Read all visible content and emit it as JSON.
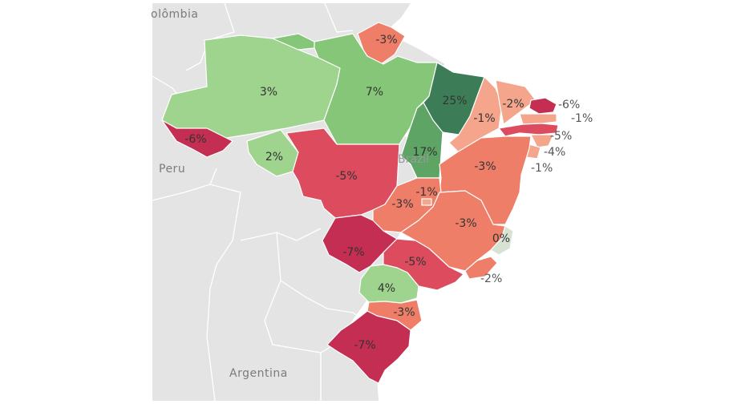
{
  "map": {
    "country_labels": {
      "colombia": "olômbia",
      "peru": "Peru",
      "argentina": "Argentina",
      "brazil_watermark": "Brazil"
    },
    "colors": {
      "land": "#e4e4e4",
      "ocean": "#ffffff",
      "strong_negative": "#c42e52",
      "negative": "#dc4c5e",
      "mild_negative": "#ef7e68",
      "slight_negative": "#f4a58c",
      "neutral": "#d6e2d2",
      "mild_positive": "#9ed48e",
      "positive": "#86c678",
      "strong_positive": "#5ea565",
      "max_positive": "#3c7d58"
    },
    "regions": [
      {
        "id": "amazonas",
        "value": "3%",
        "color_key": "mild_positive"
      },
      {
        "id": "para",
        "value": "7%",
        "color_key": "positive"
      },
      {
        "id": "amapa",
        "value": "-3%",
        "color_key": "mild_negative"
      },
      {
        "id": "roraima",
        "value": "",
        "color_key": "positive"
      },
      {
        "id": "acre",
        "value": "-6%",
        "color_key": "strong_negative"
      },
      {
        "id": "rondonia",
        "value": "2%",
        "color_key": "mild_positive"
      },
      {
        "id": "mato_grosso",
        "value": "-5%",
        "color_key": "negative"
      },
      {
        "id": "maranhao",
        "value": "25%",
        "color_key": "max_positive"
      },
      {
        "id": "tocantins",
        "value": "17%",
        "color_key": "strong_positive"
      },
      {
        "id": "piaui",
        "value": "-1%",
        "color_key": "slight_negative"
      },
      {
        "id": "ceara",
        "value": "-2%",
        "color_key": "slight_negative"
      },
      {
        "id": "rio_grande_do_norte",
        "value": "-6%",
        "color_key": "strong_negative"
      },
      {
        "id": "paraiba",
        "value": "-1%",
        "color_key": "slight_negative"
      },
      {
        "id": "pernambuco",
        "value": "-5%",
        "color_key": "negative"
      },
      {
        "id": "alagoas",
        "value": "-4%",
        "color_key": "slight_negative"
      },
      {
        "id": "sergipe",
        "value": "-1%",
        "color_key": "slight_negative"
      },
      {
        "id": "bahia",
        "value": "-3%",
        "color_key": "mild_negative"
      },
      {
        "id": "goias",
        "value": "-3%",
        "color_key": "mild_negative"
      },
      {
        "id": "distrito_federal",
        "value": "-1%",
        "color_key": "slight_negative"
      },
      {
        "id": "minas_gerais",
        "value": "-3%",
        "color_key": "mild_negative"
      },
      {
        "id": "espirito_santo",
        "value": "0%",
        "color_key": "neutral"
      },
      {
        "id": "rio_de_janeiro",
        "value": "-2%",
        "color_key": "mild_negative"
      },
      {
        "id": "mato_grosso_do_sul",
        "value": "-7%",
        "color_key": "strong_negative"
      },
      {
        "id": "sao_paulo",
        "value": "-5%",
        "color_key": "negative"
      },
      {
        "id": "parana",
        "value": "4%",
        "color_key": "mild_positive"
      },
      {
        "id": "santa_catarina",
        "value": "-3%",
        "color_key": "mild_negative"
      },
      {
        "id": "rio_grande_do_sul",
        "value": "-7%",
        "color_key": "strong_negative"
      }
    ]
  }
}
